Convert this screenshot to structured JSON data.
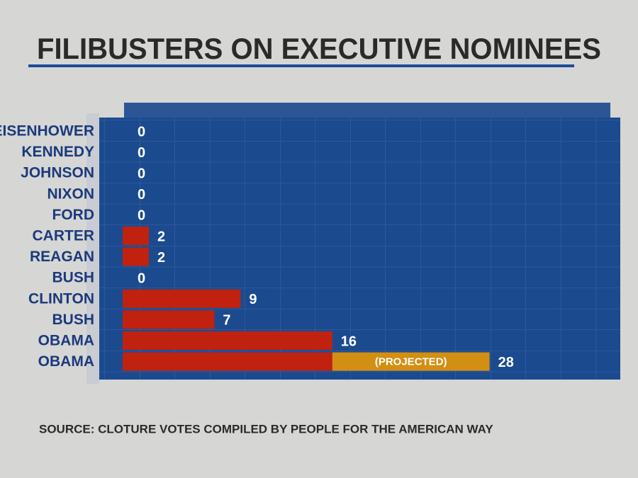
{
  "chart_data": {
    "type": "bar",
    "orientation": "horizontal",
    "stacked": true,
    "title": "FILIBUSTERS ON EXECUTIVE NOMINEES",
    "source": "SOURCE: CLOTURE VOTES COMPILED BY PEOPLE FOR THE AMERICAN WAY",
    "categories": [
      "EISENHOWER",
      "KENNEDY",
      "JOHNSON",
      "NIXON",
      "FORD",
      "CARTER",
      "REAGAN",
      "BUSH",
      "CLINTON",
      "BUSH",
      "OBAMA",
      "OBAMA"
    ],
    "series": [
      {
        "color": "#c0220f",
        "values": [
          0,
          0,
          0,
          0,
          0,
          2,
          2,
          0,
          9,
          7,
          16,
          16
        ]
      },
      {
        "name": "(PROJECTED)",
        "color": "#d38f12",
        "values": [
          null,
          null,
          null,
          null,
          null,
          null,
          null,
          null,
          null,
          null,
          null,
          12
        ]
      }
    ],
    "totals": [
      0,
      0,
      0,
      0,
      0,
      2,
      2,
      0,
      9,
      7,
      16,
      28
    ],
    "xlim": [
      0,
      37
    ]
  }
}
